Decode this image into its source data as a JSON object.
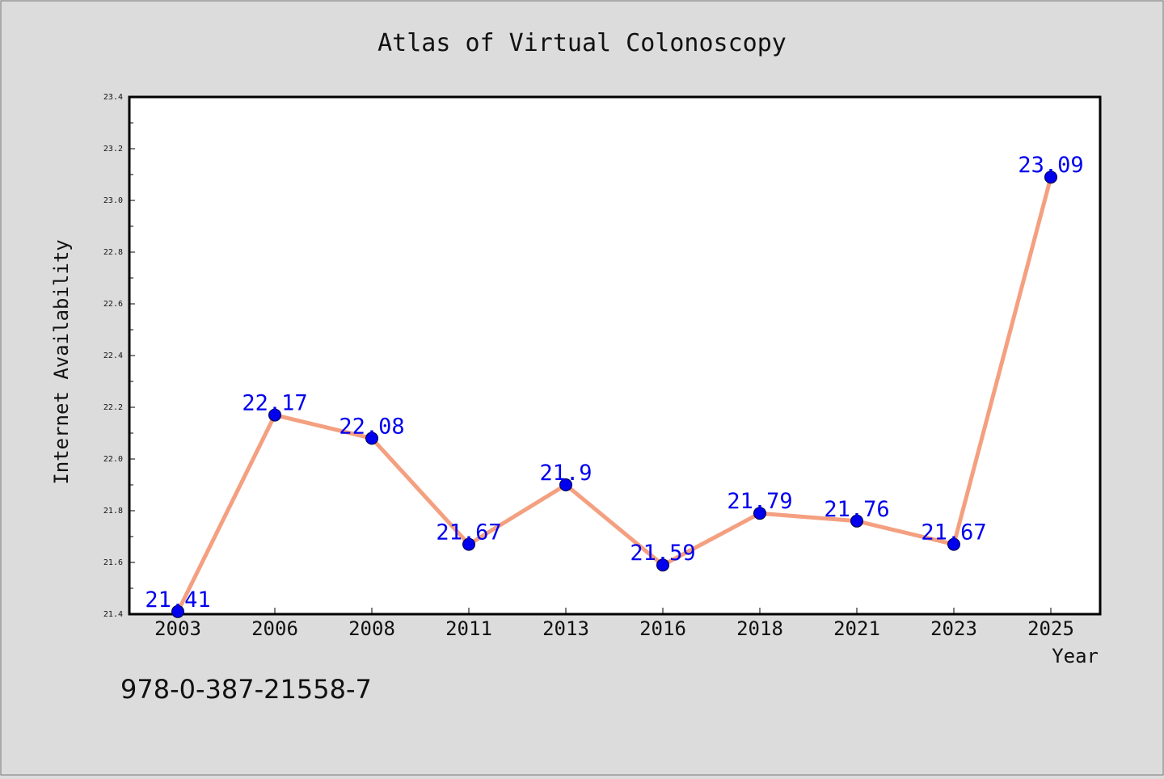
{
  "chart_data": {
    "type": "line",
    "title": "Atlas of Virtual Colonoscopy",
    "xlabel": "Year",
    "ylabel": "Internet Availability",
    "categories": [
      "2003",
      "2006",
      "2008",
      "2011",
      "2013",
      "2016",
      "2018",
      "2021",
      "2023",
      "2025"
    ],
    "values": [
      21.41,
      22.17,
      22.08,
      21.67,
      21.9,
      21.59,
      21.79,
      21.76,
      21.67,
      23.09
    ],
    "data_labels": [
      "21.41",
      "22.17",
      "22.08",
      "21.67",
      "21.9",
      "21.59",
      "21.79",
      "21.76",
      "21.67",
      "23.09"
    ],
    "ylim": [
      21.4,
      23.4
    ],
    "yticks": [
      "21.4",
      "21.6",
      "21.8",
      "22.0",
      "22.2",
      "22.4",
      "22.6",
      "22.8",
      "23.0",
      "23.2",
      "23.4"
    ],
    "grid": false,
    "line_color": "#f4a080",
    "marker_color": "#0000ee",
    "label_color": "#0000ee"
  },
  "footer": {
    "isbn": "978-0-387-21558-7"
  }
}
